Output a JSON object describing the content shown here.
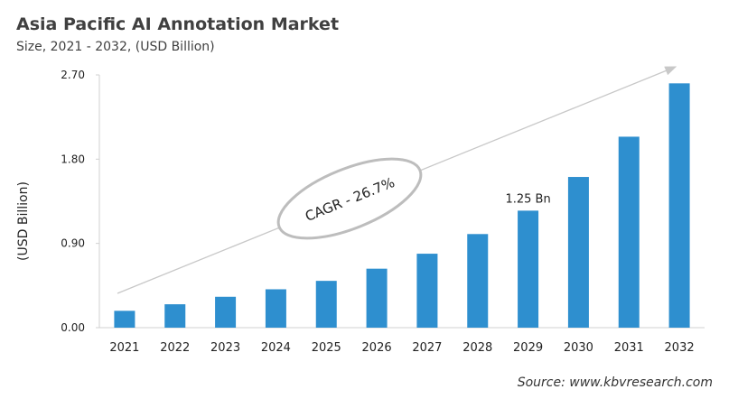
{
  "chart_data": {
    "type": "bar",
    "title": "Asia Pacific AI Annotation Market",
    "subtitle": "Size, 2021 - 2032, (USD Billion)",
    "ylabel": "(USD Billion)",
    "xlabel": "",
    "categories": [
      "2021",
      "2022",
      "2023",
      "2024",
      "2025",
      "2026",
      "2027",
      "2028",
      "2029",
      "2030",
      "2031",
      "2032"
    ],
    "values": [
      0.18,
      0.25,
      0.33,
      0.41,
      0.5,
      0.63,
      0.79,
      1.0,
      1.25,
      1.61,
      2.04,
      2.61
    ],
    "ylim": [
      0,
      2.7
    ],
    "yticks": [
      "0.00",
      "0.90",
      "1.80",
      "2.70"
    ],
    "grid": false,
    "bar_color": "#2e8fcf",
    "annotations": {
      "data_label": "1.25 Bn",
      "data_label_category": "2029",
      "cagr": "CAGR - 26.7%"
    },
    "source": "Source: www.kbvresearch.com"
  }
}
